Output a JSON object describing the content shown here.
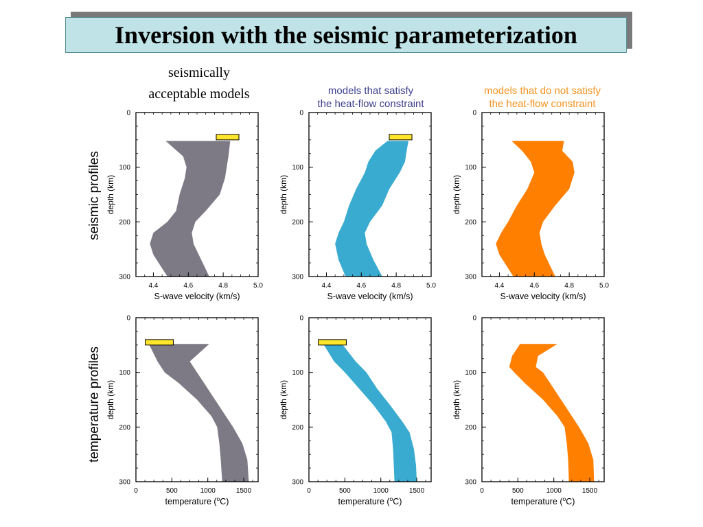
{
  "title": "Inversion with the seismic parameterization",
  "columns": [
    {
      "line1": "seismically",
      "line2": "acceptable models",
      "color": "#000000"
    },
    {
      "line1": "models that satisfy",
      "line2": "the heat-flow constraint",
      "color": "#3b3f8c"
    },
    {
      "line1": "models that do not satisfy",
      "line2": "the heat-flow constraint",
      "color": "#f5921e"
    }
  ],
  "row_labels": {
    "seismic": "seismic profiles",
    "temperature": "temperature profiles"
  },
  "colors": {
    "gray": "#7d7a86",
    "blue": "#3aabd0",
    "orange": "#ff7f00",
    "box": "#ffe52b"
  },
  "chart_data": [
    {
      "type": "area",
      "row": "seismic",
      "col": 0,
      "fill": "#7d7a86",
      "xlabel": "S-wave velocity (km/s)",
      "ylabel": "depth (km)",
      "xlim": [
        4.3,
        5.0
      ],
      "ylim": [
        0,
        300
      ],
      "xticks": [
        4.4,
        4.6,
        4.8,
        5.0
      ],
      "xticklabels": [
        "4.4",
        "4.6",
        "4.8",
        "5.0"
      ],
      "yticks": [
        0,
        100,
        200,
        300
      ],
      "yticklabels": [
        "0",
        "100",
        "200",
        "300"
      ],
      "marker_box": {
        "x": [
          4.76,
          4.89
        ],
        "y": [
          40,
          50
        ]
      },
      "band": {
        "depth": [
          52,
          80,
          100,
          120,
          150,
          180,
          200,
          220,
          240,
          260,
          280,
          300
        ],
        "left": [
          4.47,
          4.57,
          4.59,
          4.58,
          4.55,
          4.53,
          4.48,
          4.4,
          4.38,
          4.4,
          4.44,
          4.48
        ],
        "right": [
          4.84,
          4.83,
          4.82,
          4.81,
          4.78,
          4.7,
          4.64,
          4.62,
          4.63,
          4.66,
          4.69,
          4.72
        ]
      }
    },
    {
      "type": "area",
      "row": "seismic",
      "col": 1,
      "fill": "#3aabd0",
      "xlabel": "S-wave velocity (km/s)",
      "ylabel": "depth (km)",
      "xlim": [
        4.3,
        5.0
      ],
      "ylim": [
        0,
        300
      ],
      "xticks": [
        4.4,
        4.6,
        4.8,
        5.0
      ],
      "xticklabels": [
        "4.4",
        "4.6",
        "4.8",
        "5.0"
      ],
      "yticks": [
        0,
        100,
        200,
        300
      ],
      "yticklabels": [
        "0",
        "100",
        "200",
        "300"
      ],
      "marker_box": {
        "x": [
          4.76,
          4.89
        ],
        "y": [
          40,
          50
        ]
      },
      "band": {
        "depth": [
          52,
          70,
          90,
          110,
          140,
          170,
          200,
          220,
          240,
          270,
          300
        ],
        "left": [
          4.75,
          4.68,
          4.64,
          4.62,
          4.57,
          4.53,
          4.5,
          4.47,
          4.45,
          4.47,
          4.51
        ],
        "right": [
          4.87,
          4.86,
          4.85,
          4.82,
          4.76,
          4.72,
          4.65,
          4.62,
          4.63,
          4.67,
          4.72
        ]
      }
    },
    {
      "type": "area",
      "row": "seismic",
      "col": 2,
      "fill": "#ff7f00",
      "xlabel": "S-wave velocity (km/s)",
      "ylabel": "depth (km)",
      "xlim": [
        4.3,
        5.0
      ],
      "ylim": [
        0,
        300
      ],
      "xticks": [
        4.4,
        4.6,
        4.8,
        5.0
      ],
      "xticklabels": [
        "4.4",
        "4.6",
        "4.8",
        "5.0"
      ],
      "yticks": [
        0,
        100,
        200,
        300
      ],
      "yticklabels": [
        "0",
        "100",
        "200",
        "300"
      ],
      "band": {
        "depth": [
          52,
          70,
          90,
          110,
          140,
          170,
          200,
          220,
          240,
          260,
          300
        ],
        "left": [
          4.47,
          4.53,
          4.58,
          4.6,
          4.56,
          4.5,
          4.45,
          4.41,
          4.38,
          4.4,
          4.48
        ],
        "right": [
          4.77,
          4.76,
          4.82,
          4.83,
          4.8,
          4.72,
          4.65,
          4.63,
          4.64,
          4.66,
          4.72
        ]
      }
    },
    {
      "type": "area",
      "row": "temperature",
      "col": 0,
      "fill": "#7d7a86",
      "xlabel": "temperature (",
      "xlabel_sup": "o",
      "xlabel_end": "C)",
      "ylabel": "depth (km)",
      "xlim": [
        0,
        1700
      ],
      "ylim": [
        0,
        300
      ],
      "xticks": [
        0,
        500,
        1000,
        1500
      ],
      "xticklabels": [
        "0",
        "500",
        "1000",
        "1500"
      ],
      "yticks": [
        0,
        100,
        200,
        300
      ],
      "yticklabels": [
        "0",
        "100",
        "200",
        "300"
      ],
      "marker_box": {
        "x": [
          130,
          520
        ],
        "y": [
          40,
          50
        ]
      },
      "band": {
        "depth": [
          48,
          80,
          100,
          120,
          150,
          180,
          200,
          230,
          260,
          300
        ],
        "left": [
          180,
          300,
          400,
          600,
          850,
          1050,
          1130,
          1160,
          1180,
          1200
        ],
        "right": [
          1020,
          750,
          850,
          950,
          1100,
          1250,
          1350,
          1480,
          1550,
          1570
        ]
      }
    },
    {
      "type": "area",
      "row": "temperature",
      "col": 1,
      "fill": "#3aabd0",
      "xlabel": "temperature (",
      "xlabel_sup": "o",
      "xlabel_end": "C)",
      "ylabel": "depth (km)",
      "xlim": [
        0,
        1700
      ],
      "ylim": [
        0,
        300
      ],
      "xticks": [
        0,
        500,
        1000,
        1500
      ],
      "xticklabels": [
        "0",
        "500",
        "1000",
        "1500"
      ],
      "yticks": [
        0,
        100,
        200,
        300
      ],
      "yticklabels": [
        "0",
        "100",
        "200",
        "300"
      ],
      "marker_box": {
        "x": [
          130,
          520
        ],
        "y": [
          40,
          50
        ]
      },
      "band": {
        "depth": [
          48,
          80,
          100,
          130,
          160,
          190,
          210,
          240,
          270,
          300
        ],
        "left": [
          200,
          350,
          500,
          700,
          900,
          1070,
          1150,
          1170,
          1180,
          1190
        ],
        "right": [
          460,
          650,
          800,
          950,
          1130,
          1300,
          1400,
          1460,
          1490,
          1500
        ]
      }
    },
    {
      "type": "area",
      "row": "temperature",
      "col": 2,
      "fill": "#ff7f00",
      "xlabel": "temperature (",
      "xlabel_sup": "o",
      "xlabel_end": "C)",
      "ylabel": "depth (km)",
      "xlim": [
        0,
        1700
      ],
      "ylim": [
        0,
        300
      ],
      "xticks": [
        0,
        500,
        1000,
        1500
      ],
      "xticklabels": [
        "0",
        "500",
        "1000",
        "1500"
      ],
      "yticks": [
        0,
        100,
        200,
        300
      ],
      "yticklabels": [
        "0",
        "100",
        "200",
        "300"
      ],
      "band": {
        "depth": [
          48,
          70,
          90,
          100,
          120,
          150,
          180,
          200,
          230,
          260,
          300
        ],
        "left": [
          530,
          420,
          380,
          450,
          600,
          850,
          1050,
          1150,
          1180,
          1200,
          1210
        ],
        "right": [
          1050,
          780,
          750,
          850,
          950,
          1100,
          1250,
          1350,
          1480,
          1550,
          1560
        ]
      }
    }
  ]
}
